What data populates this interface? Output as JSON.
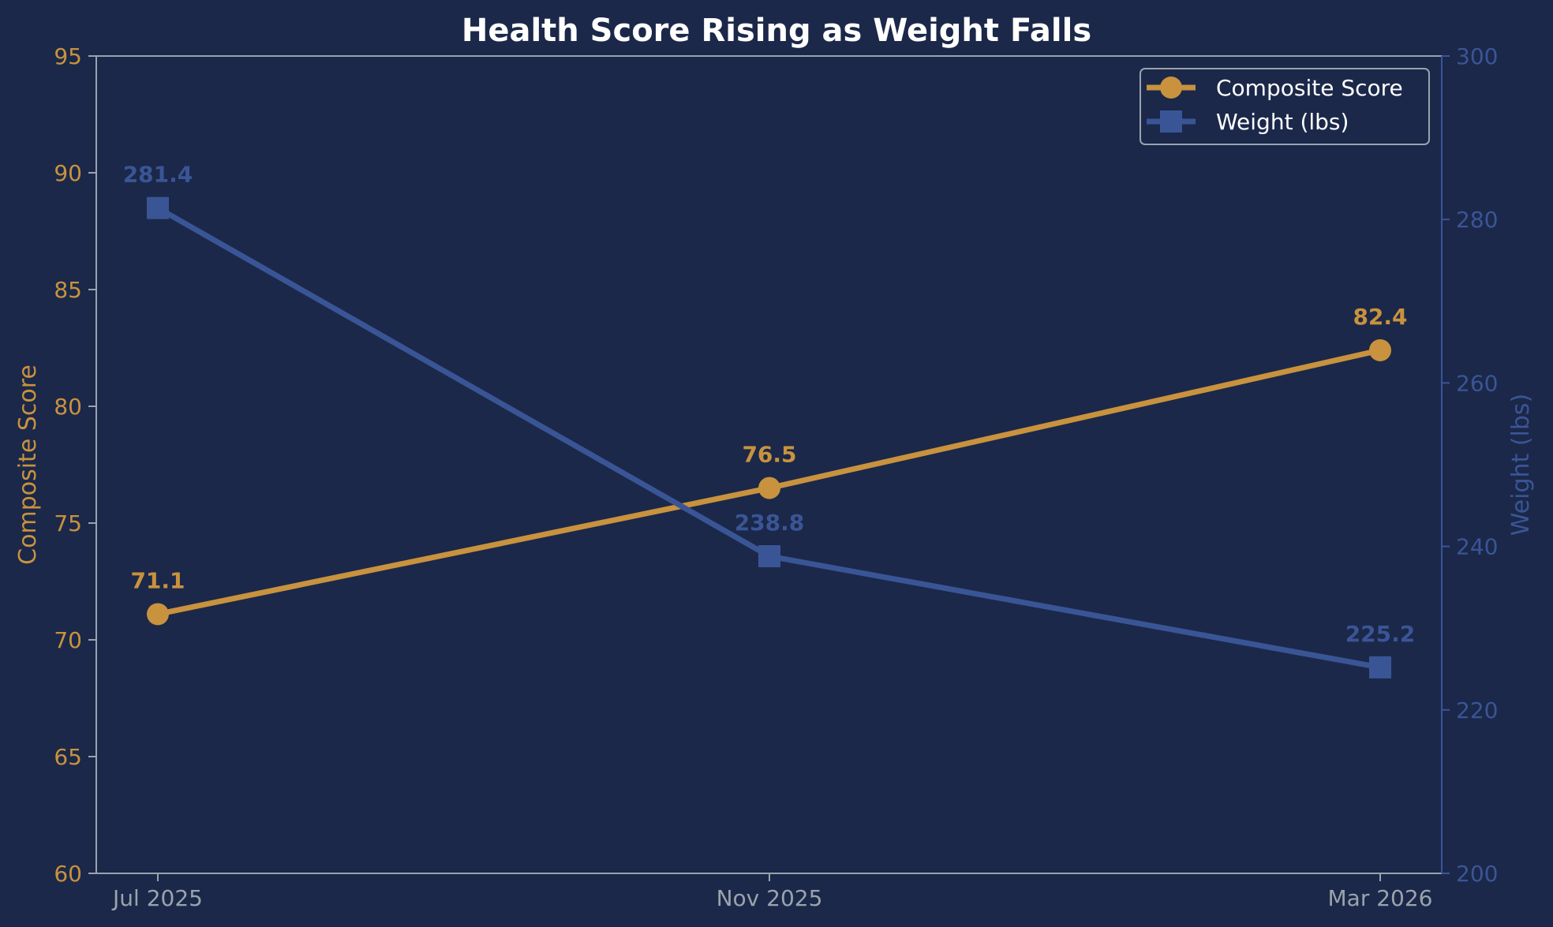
{
  "chart_data": {
    "type": "line",
    "title": "Health Score Rising as Weight Falls",
    "categories": [
      "Jul 2025",
      "Nov 2025",
      "Mar 2026"
    ],
    "y_left": {
      "label": "Composite Score",
      "range": [
        60,
        95
      ],
      "ticks": [
        "60",
        "65",
        "70",
        "75",
        "80",
        "85",
        "90",
        "95"
      ]
    },
    "y_right": {
      "label": "Weight (lbs)",
      "range": [
        200,
        300
      ],
      "ticks": [
        "200",
        "220",
        "240",
        "260",
        "280",
        "300"
      ]
    },
    "series": [
      {
        "name": "Composite Score",
        "axis": "left",
        "marker": "circle",
        "color": "#c8923e",
        "values": [
          71.1,
          76.5,
          82.4
        ],
        "labels": [
          "71.1",
          "76.5",
          "82.4"
        ]
      },
      {
        "name": "Weight (lbs)",
        "axis": "right",
        "marker": "square",
        "color": "#3a5596",
        "values": [
          281.4,
          238.8,
          225.2
        ],
        "labels": [
          "281.4",
          "238.8",
          "225.2"
        ]
      }
    ],
    "grid": false,
    "legend": "top-right",
    "background": "#1b2849",
    "axis_color": "#9aa3ad"
  }
}
